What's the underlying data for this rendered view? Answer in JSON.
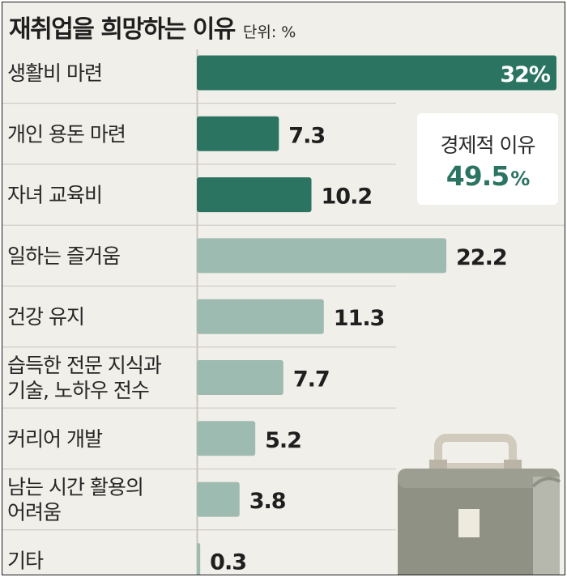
{
  "header": {
    "title": "재취업을 희망하는 이유",
    "unit": "단위: %"
  },
  "callout": {
    "label": "경제적 이유",
    "value": "49.5",
    "unit_symbol": "%"
  },
  "colors": {
    "economic": "#2b7462",
    "other": "#9ebbb1",
    "background": "#f1efe9",
    "divider": "#c9c6bd"
  },
  "icon": "briefcase-icon",
  "chart_data": {
    "type": "bar",
    "orientation": "horizontal",
    "categories": [
      "생활비 마련",
      "개인 용돈 마련",
      "자녀 교육비",
      "일하는 즐거움",
      "건강 유지",
      "습득한 전문 지식과\n기술, 노하우 전수",
      "커리어 개발",
      "남는 시간 활용의\n어려움",
      "기타"
    ],
    "values": [
      32,
      7.3,
      10.2,
      22.2,
      11.3,
      7.7,
      5.2,
      3.8,
      0.3
    ],
    "value_labels": [
      "32%",
      "7.3",
      "10.2",
      "22.2",
      "11.3",
      "7.7",
      "5.2",
      "3.8",
      "0.3"
    ],
    "groups": [
      "economic",
      "economic",
      "economic",
      "other",
      "other",
      "other",
      "other",
      "other",
      "other"
    ],
    "xlim": [
      0,
      32
    ],
    "title": "재취업을 희망하는 이유",
    "unit": "%",
    "grid": false,
    "legend": "none"
  }
}
